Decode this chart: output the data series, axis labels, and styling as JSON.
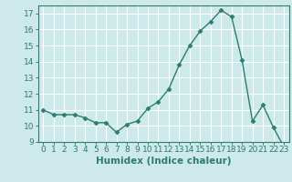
{
  "x": [
    0,
    1,
    2,
    3,
    4,
    5,
    6,
    7,
    8,
    9,
    10,
    11,
    12,
    13,
    14,
    15,
    16,
    17,
    18,
    19,
    20,
    21,
    22,
    23
  ],
  "y": [
    11.0,
    10.7,
    10.7,
    10.7,
    10.5,
    10.2,
    10.2,
    9.6,
    10.1,
    10.3,
    11.1,
    11.5,
    12.3,
    13.8,
    15.0,
    15.9,
    16.5,
    17.2,
    16.8,
    14.1,
    10.3,
    11.3,
    9.9,
    8.7
  ],
  "line_color": "#2d7d6e",
  "marker": "D",
  "marker_size": 2.5,
  "background_color": "#cde9e9",
  "grid_color": "#ffffff",
  "xlabel": "Humidex (Indice chaleur)",
  "ylim": [
    9,
    17.5
  ],
  "xlim": [
    -0.5,
    23.5
  ],
  "yticks": [
    9,
    10,
    11,
    12,
    13,
    14,
    15,
    16,
    17
  ],
  "xticks": [
    0,
    1,
    2,
    3,
    4,
    5,
    6,
    7,
    8,
    9,
    10,
    11,
    12,
    13,
    14,
    15,
    16,
    17,
    18,
    19,
    20,
    21,
    22,
    23
  ],
  "tick_fontsize": 6.5,
  "label_fontsize": 7.5,
  "spine_color": "#2d7d6e"
}
